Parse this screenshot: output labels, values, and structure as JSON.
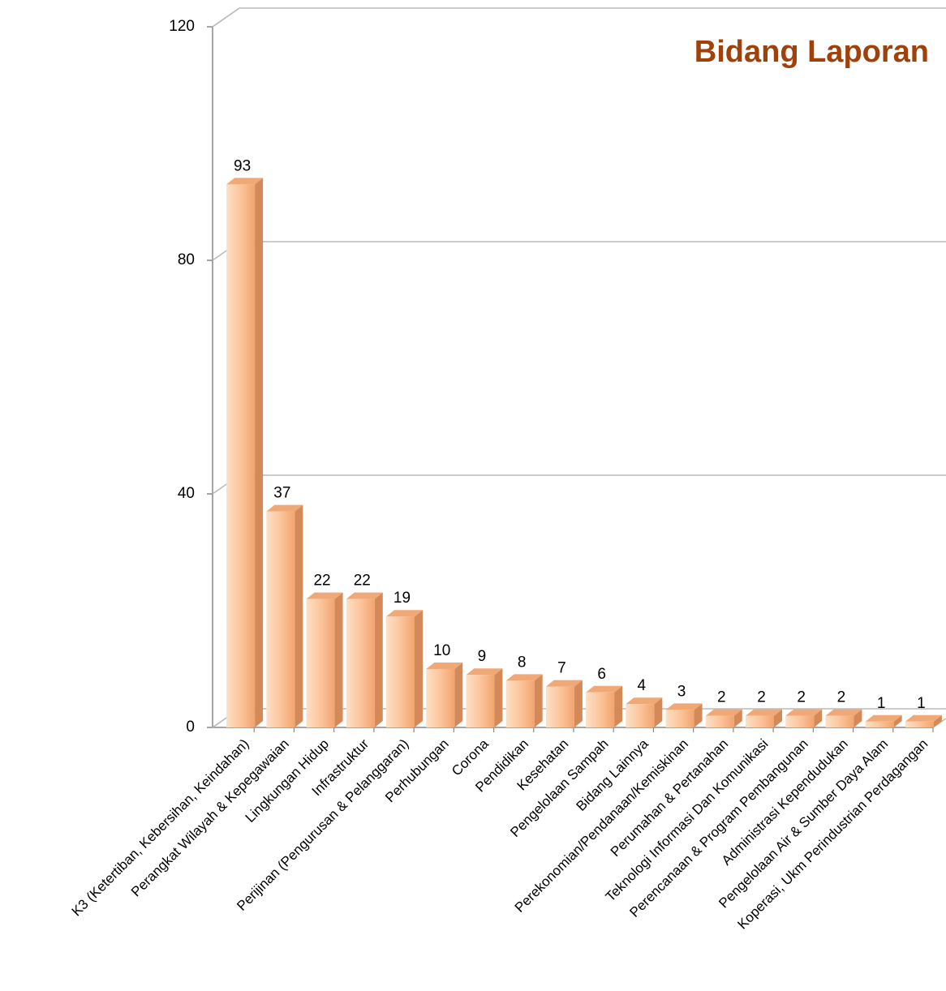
{
  "chart_data": {
    "type": "bar",
    "title": "Bidang Laporan",
    "categories": [
      "K3 (Ketertiban, Kebersihan, Keindahan)",
      "Perangkat Wilayah & Kepegawaian",
      "Lingkungan Hidup",
      "Infrastruktur",
      "Perijinan (Pengurusan & Pelanggaran)",
      "Perhubungan",
      "Corona",
      "Pendidikan",
      "Kesehatan",
      "Pengelolaan Sampah",
      "Bidang Lainnya",
      "Perekonomian/Pendanaan/Kemiskinan",
      "Perumahan & Pertanahan",
      "Teknologi Informasi Dan Komunikasi",
      "Perencanaan & Program Pembangunan",
      "Administrasi Kependudukan",
      "Pengelolaan Air & Sumber Daya Alam",
      "Koperasi, Ukm Perindustrian Perdagangan"
    ],
    "values": [
      93,
      37,
      22,
      22,
      19,
      10,
      9,
      8,
      7,
      6,
      4,
      3,
      2,
      2,
      2,
      2,
      1,
      1
    ],
    "color": "#f8b888",
    "ylim": [
      0,
      120
    ],
    "yticks": [
      0,
      40,
      80,
      120
    ],
    "grid": true
  }
}
